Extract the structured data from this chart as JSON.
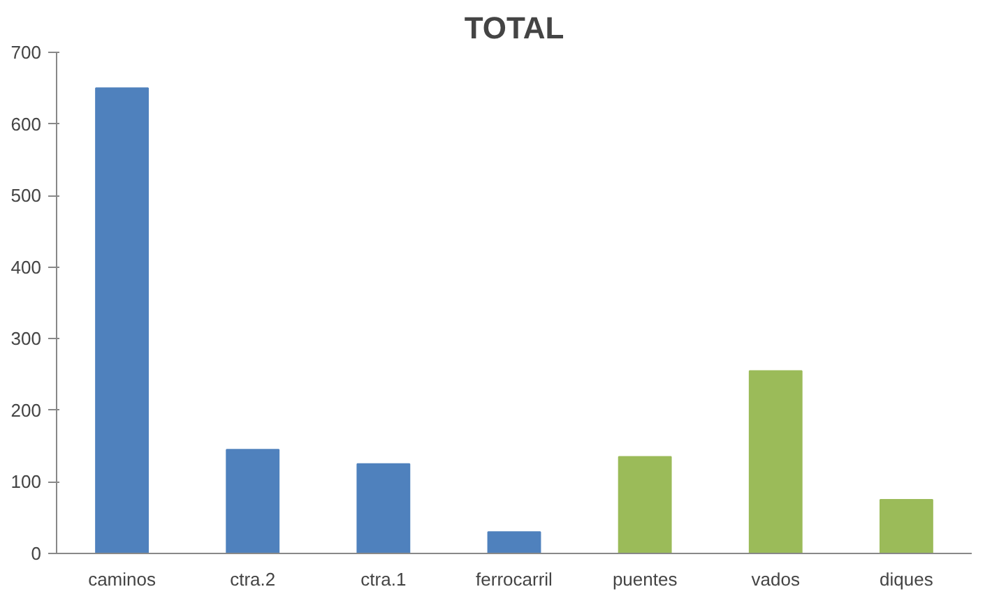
{
  "chart_data": {
    "type": "bar",
    "title": "TOTAL",
    "categories": [
      "caminos",
      "ctra.2",
      "ctra.1",
      "ferrocarril",
      "puentes",
      "vados",
      "diques"
    ],
    "values": [
      650,
      145,
      125,
      30,
      135,
      255,
      75
    ],
    "colors": [
      "#4f81bd",
      "#4f81bd",
      "#4f81bd",
      "#4f81bd",
      "#9bbb59",
      "#9bbb59",
      "#9bbb59"
    ],
    "ylim": [
      0,
      700
    ],
    "yticks": [
      0,
      100,
      200,
      300,
      400,
      500,
      600,
      700
    ],
    "grid": false
  }
}
